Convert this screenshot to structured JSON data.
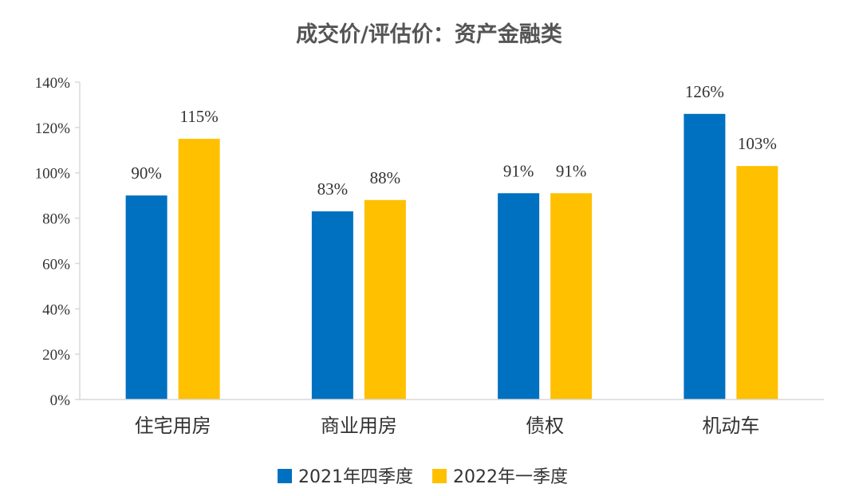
{
  "chart_data": {
    "type": "bar",
    "title": "成交价/评估价：资产金融类",
    "categories": [
      "住宅用房",
      "商业用房",
      "债权",
      "机动车"
    ],
    "series": [
      {
        "name": "2021年四季度",
        "values": [
          90,
          83,
          91,
          126
        ],
        "labels": [
          "90%",
          "83%",
          "91%",
          "126%"
        ],
        "color": "#0070C0"
      },
      {
        "name": "2022年一季度",
        "values": [
          115,
          88,
          91,
          103
        ],
        "labels": [
          "115%",
          "88%",
          "91%",
          "103%"
        ],
        "color": "#FFC000"
      }
    ],
    "ylim": [
      0,
      140
    ],
    "yticks": [
      0,
      20,
      40,
      60,
      80,
      100,
      120,
      140
    ],
    "ytick_labels": [
      "0%",
      "20%",
      "40%",
      "60%",
      "80%",
      "100%",
      "120%",
      "140%"
    ],
    "xlabel": "",
    "ylabel": "",
    "legend_position": "bottom",
    "grid": false,
    "axis_color": "#D9D9D9"
  }
}
